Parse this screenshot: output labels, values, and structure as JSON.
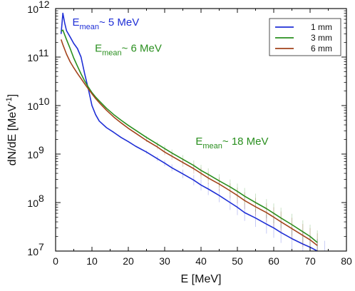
{
  "chart_data": {
    "type": "line",
    "title": "",
    "xlabel": "E [MeV]",
    "ylabel_main": "dN/dE [MeV",
    "ylabel_sup": "-1",
    "ylabel_close": "]",
    "xlim": [
      0,
      80
    ],
    "ylim": [
      10000000.0,
      1000000000000.0
    ],
    "yscale": "log",
    "x_ticks": [
      0,
      10,
      20,
      30,
      40,
      50,
      60,
      70,
      80
    ],
    "x_tick_labels": [
      "0",
      "10",
      "20",
      "30",
      "40",
      "50",
      "60",
      "70",
      "80"
    ],
    "y_ticks": [
      10000000.0,
      100000000.0,
      1000000000.0,
      10000000000.0,
      100000000000.0,
      1000000000000.0
    ],
    "y_tick_labels": [
      {
        "base": "10",
        "exp": "7"
      },
      {
        "base": "10",
        "exp": "8"
      },
      {
        "base": "10",
        "exp": "9"
      },
      {
        "base": "10",
        "exp": "10"
      },
      {
        "base": "10",
        "exp": "11"
      },
      {
        "base": "10",
        "exp": "12"
      }
    ],
    "legend_position": "top-right",
    "series": [
      {
        "name": "1 mm",
        "color": "#1f2fd6",
        "x": [
          1.5,
          2,
          2.5,
          3,
          4,
          5,
          6,
          7,
          8,
          9,
          10,
          11,
          12,
          14,
          16,
          18,
          20,
          22,
          25,
          28,
          30,
          32,
          35,
          38,
          40,
          42,
          45,
          48,
          50,
          52,
          55,
          58,
          60,
          62,
          65,
          68,
          70,
          72,
          74
        ],
        "y": [
          300000000000.0,
          800000000000.0,
          500000000000.0,
          350000000000.0,
          260000000000.0,
          190000000000.0,
          150000000000.0,
          100000000000.0,
          45000000000.0,
          22000000000.0,
          10000000000.0,
          6500000000.0,
          4800000000.0,
          3500000000.0,
          2800000000.0,
          2200000000.0,
          1800000000.0,
          1450000000.0,
          1100000000.0,
          800000000.0,
          650000000.0,
          520000000.0,
          390000000.0,
          290000000.0,
          230000000.0,
          190000000.0,
          140000000.0,
          100000000.0,
          80000000.0,
          62000000.0,
          48000000.0,
          36000000.0,
          30000000.0,
          24000000.0,
          18000000.0,
          14000000.0,
          12000000.0,
          10000000.0,
          9000000.0
        ]
      },
      {
        "name": "3 mm",
        "color": "#2a8f1f",
        "x": [
          1.5,
          2,
          3,
          4,
          5,
          6,
          7,
          8,
          9,
          10,
          11,
          12,
          14,
          16,
          18,
          20,
          22,
          25,
          28,
          30,
          32,
          35,
          38,
          40,
          42,
          45,
          48,
          50,
          52,
          55,
          58,
          60,
          62,
          65,
          68,
          70,
          72
        ],
        "y": [
          340000000000.0,
          360000000000.0,
          230000000000.0,
          150000000000.0,
          95000000000.0,
          65000000000.0,
          45000000000.0,
          32000000000.0,
          24000000000.0,
          18500000000.0,
          15000000000.0,
          12500000000.0,
          8800000000.0,
          6500000000.0,
          5000000000.0,
          3900000000.0,
          3100000000.0,
          2200000000.0,
          1600000000.0,
          1300000000.0,
          1050000000.0,
          780000000.0,
          580000000.0,
          460000000.0,
          380000000.0,
          280000000.0,
          210000000.0,
          170000000.0,
          135000000.0,
          100000000.0,
          75000000.0,
          60000000.0,
          48000000.0,
          35000000.0,
          25000000.0,
          20000000.0,
          15000000.0
        ]
      },
      {
        "name": "6 mm",
        "color": "#a3431c",
        "x": [
          1.5,
          2,
          3,
          4,
          5,
          6,
          7,
          8,
          9,
          10,
          11,
          12,
          14,
          16,
          18,
          20,
          22,
          25,
          28,
          30,
          32,
          35,
          38,
          40,
          42,
          45,
          48,
          50,
          52,
          55,
          58,
          60,
          62,
          65,
          68,
          70,
          72
        ],
        "y": [
          230000000000.0,
          180000000000.0,
          115000000000.0,
          80000000000.0,
          60000000000.0,
          46000000000.0,
          36000000000.0,
          28000000000.0,
          22000000000.0,
          17500000000.0,
          14000000000.0,
          11500000000.0,
          8000000000.0,
          5800000000.0,
          4400000000.0,
          3400000000.0,
          2700000000.0,
          1900000000.0,
          1400000000.0,
          1100000000.0,
          900000000.0,
          670000000.0,
          500000000.0,
          400000000.0,
          320000000.0,
          240000000.0,
          175000000.0,
          140000000.0,
          110000000.0,
          82000000.0,
          62000000.0,
          50000000.0,
          40000000.0,
          29000000.0,
          21000000.0,
          17000000.0,
          13000000.0
        ]
      }
    ],
    "annotations": [
      {
        "prefix": "E",
        "sub": "mean",
        "suffix": "~ 5 MeV",
        "color": "#1f2fd6",
        "x": 4.6,
        "y": 440000000000.0
      },
      {
        "prefix": "E",
        "sub": "mean",
        "suffix": "~ 6 MeV",
        "color": "#2a8f1f",
        "x": 10.8,
        "y": 130000000000.0
      },
      {
        "prefix": "E",
        "sub": "mean",
        "suffix": "~ 18 MeV",
        "color": "#2a8f1f",
        "x": 38.5,
        "y": 1550000000.0
      }
    ]
  }
}
